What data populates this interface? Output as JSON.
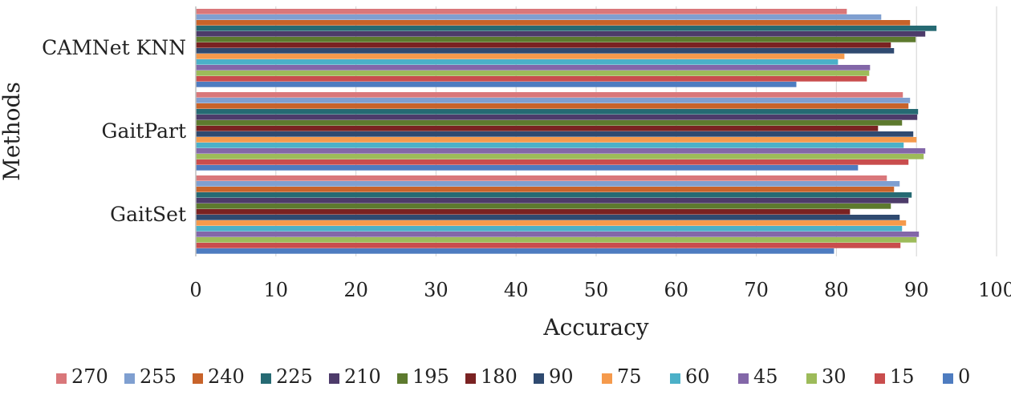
{
  "chart_data": {
    "type": "bar",
    "orientation": "horizontal",
    "title": "",
    "xlabel": "Accuracy",
    "ylabel": "Methods",
    "xlim": [
      0,
      100
    ],
    "xticks": [
      "0",
      "10",
      "20",
      "30",
      "40",
      "50",
      "60",
      "70",
      "80",
      "90",
      "100"
    ],
    "grid": true,
    "legend_position": "bottom",
    "categories": [
      "CAMNet KNN",
      "GaitPart",
      "GaitSet"
    ],
    "series": [
      {
        "name": "270",
        "color": "#d9777a",
        "values": [
          81.3,
          88.3,
          86.3
        ]
      },
      {
        "name": "255",
        "color": "#7f9fd0",
        "values": [
          85.6,
          89.2,
          87.9
        ]
      },
      {
        "name": "240",
        "color": "#c8632a",
        "values": [
          89.2,
          89.0,
          87.2
        ]
      },
      {
        "name": "225",
        "color": "#266a73",
        "values": [
          92.5,
          90.2,
          89.4
        ]
      },
      {
        "name": "210",
        "color": "#4d3b6a",
        "values": [
          91.1,
          90.1,
          89.0
        ]
      },
      {
        "name": "195",
        "color": "#5d7a2e",
        "values": [
          89.9,
          88.2,
          86.8
        ]
      },
      {
        "name": "180",
        "color": "#7a2222",
        "values": [
          86.8,
          85.2,
          81.7
        ]
      },
      {
        "name": "90",
        "color": "#2f4a70",
        "values": [
          87.2,
          89.6,
          87.9
        ]
      },
      {
        "name": "75",
        "color": "#f59a4c",
        "values": [
          81.0,
          90.0,
          88.7
        ]
      },
      {
        "name": "60",
        "color": "#4bb0c8",
        "values": [
          80.2,
          88.4,
          88.2
        ]
      },
      {
        "name": "45",
        "color": "#8367a8",
        "values": [
          84.2,
          91.1,
          90.3
        ]
      },
      {
        "name": "30",
        "color": "#9dbb5a",
        "values": [
          84.1,
          90.9,
          90.0
        ]
      },
      {
        "name": "15",
        "color": "#c94d4d",
        "values": [
          83.8,
          89.0,
          88.0
        ]
      },
      {
        "name": "0",
        "color": "#4e7cc0",
        "values": [
          75.0,
          82.7,
          79.7
        ]
      }
    ]
  }
}
